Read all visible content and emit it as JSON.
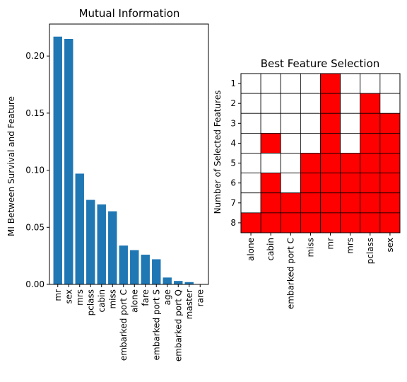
{
  "chart_data": [
    {
      "type": "bar",
      "title": "Mutual Information",
      "xlabel": "",
      "ylabel": "MI Between Survival and Feature",
      "ylim": [
        0,
        0.228
      ],
      "yticks": [
        "0.00",
        "0.05",
        "0.10",
        "0.15",
        "0.20"
      ],
      "categories": [
        "mr",
        "sex",
        "mrs",
        "pclass",
        "cabin",
        "miss",
        "embarked port C",
        "alone",
        "fare",
        "embarked port S",
        "age",
        "embarked port Q",
        "master",
        "rare"
      ],
      "values": [
        0.217,
        0.215,
        0.097,
        0.074,
        0.07,
        0.064,
        0.034,
        0.03,
        0.026,
        0.022,
        0.006,
        0.003,
        0.002,
        0.0
      ],
      "bar_color": "#1f77b4"
    },
    {
      "type": "heatmap",
      "title": "Best Feature Selection",
      "xlabel": "",
      "ylabel": "Number of Selected Features",
      "features": [
        "alone",
        "cabin",
        "embarked port C",
        "miss",
        "mr",
        "mrs",
        "pclass",
        "sex"
      ],
      "rows": [
        "1",
        "2",
        "3",
        "4",
        "5",
        "6",
        "7",
        "8"
      ],
      "selected": [
        [
          0,
          0,
          0,
          0,
          1,
          0,
          0,
          0
        ],
        [
          0,
          0,
          0,
          0,
          1,
          0,
          1,
          0
        ],
        [
          0,
          0,
          0,
          0,
          1,
          0,
          1,
          1
        ],
        [
          0,
          1,
          0,
          0,
          1,
          0,
          1,
          1
        ],
        [
          0,
          0,
          0,
          1,
          1,
          1,
          1,
          1
        ],
        [
          0,
          1,
          0,
          1,
          1,
          1,
          1,
          1
        ],
        [
          0,
          1,
          1,
          1,
          1,
          1,
          1,
          1
        ],
        [
          1,
          1,
          1,
          1,
          1,
          1,
          1,
          1
        ]
      ],
      "selected_color": "#ff0000",
      "unselected_color": "#ffffff"
    }
  ]
}
